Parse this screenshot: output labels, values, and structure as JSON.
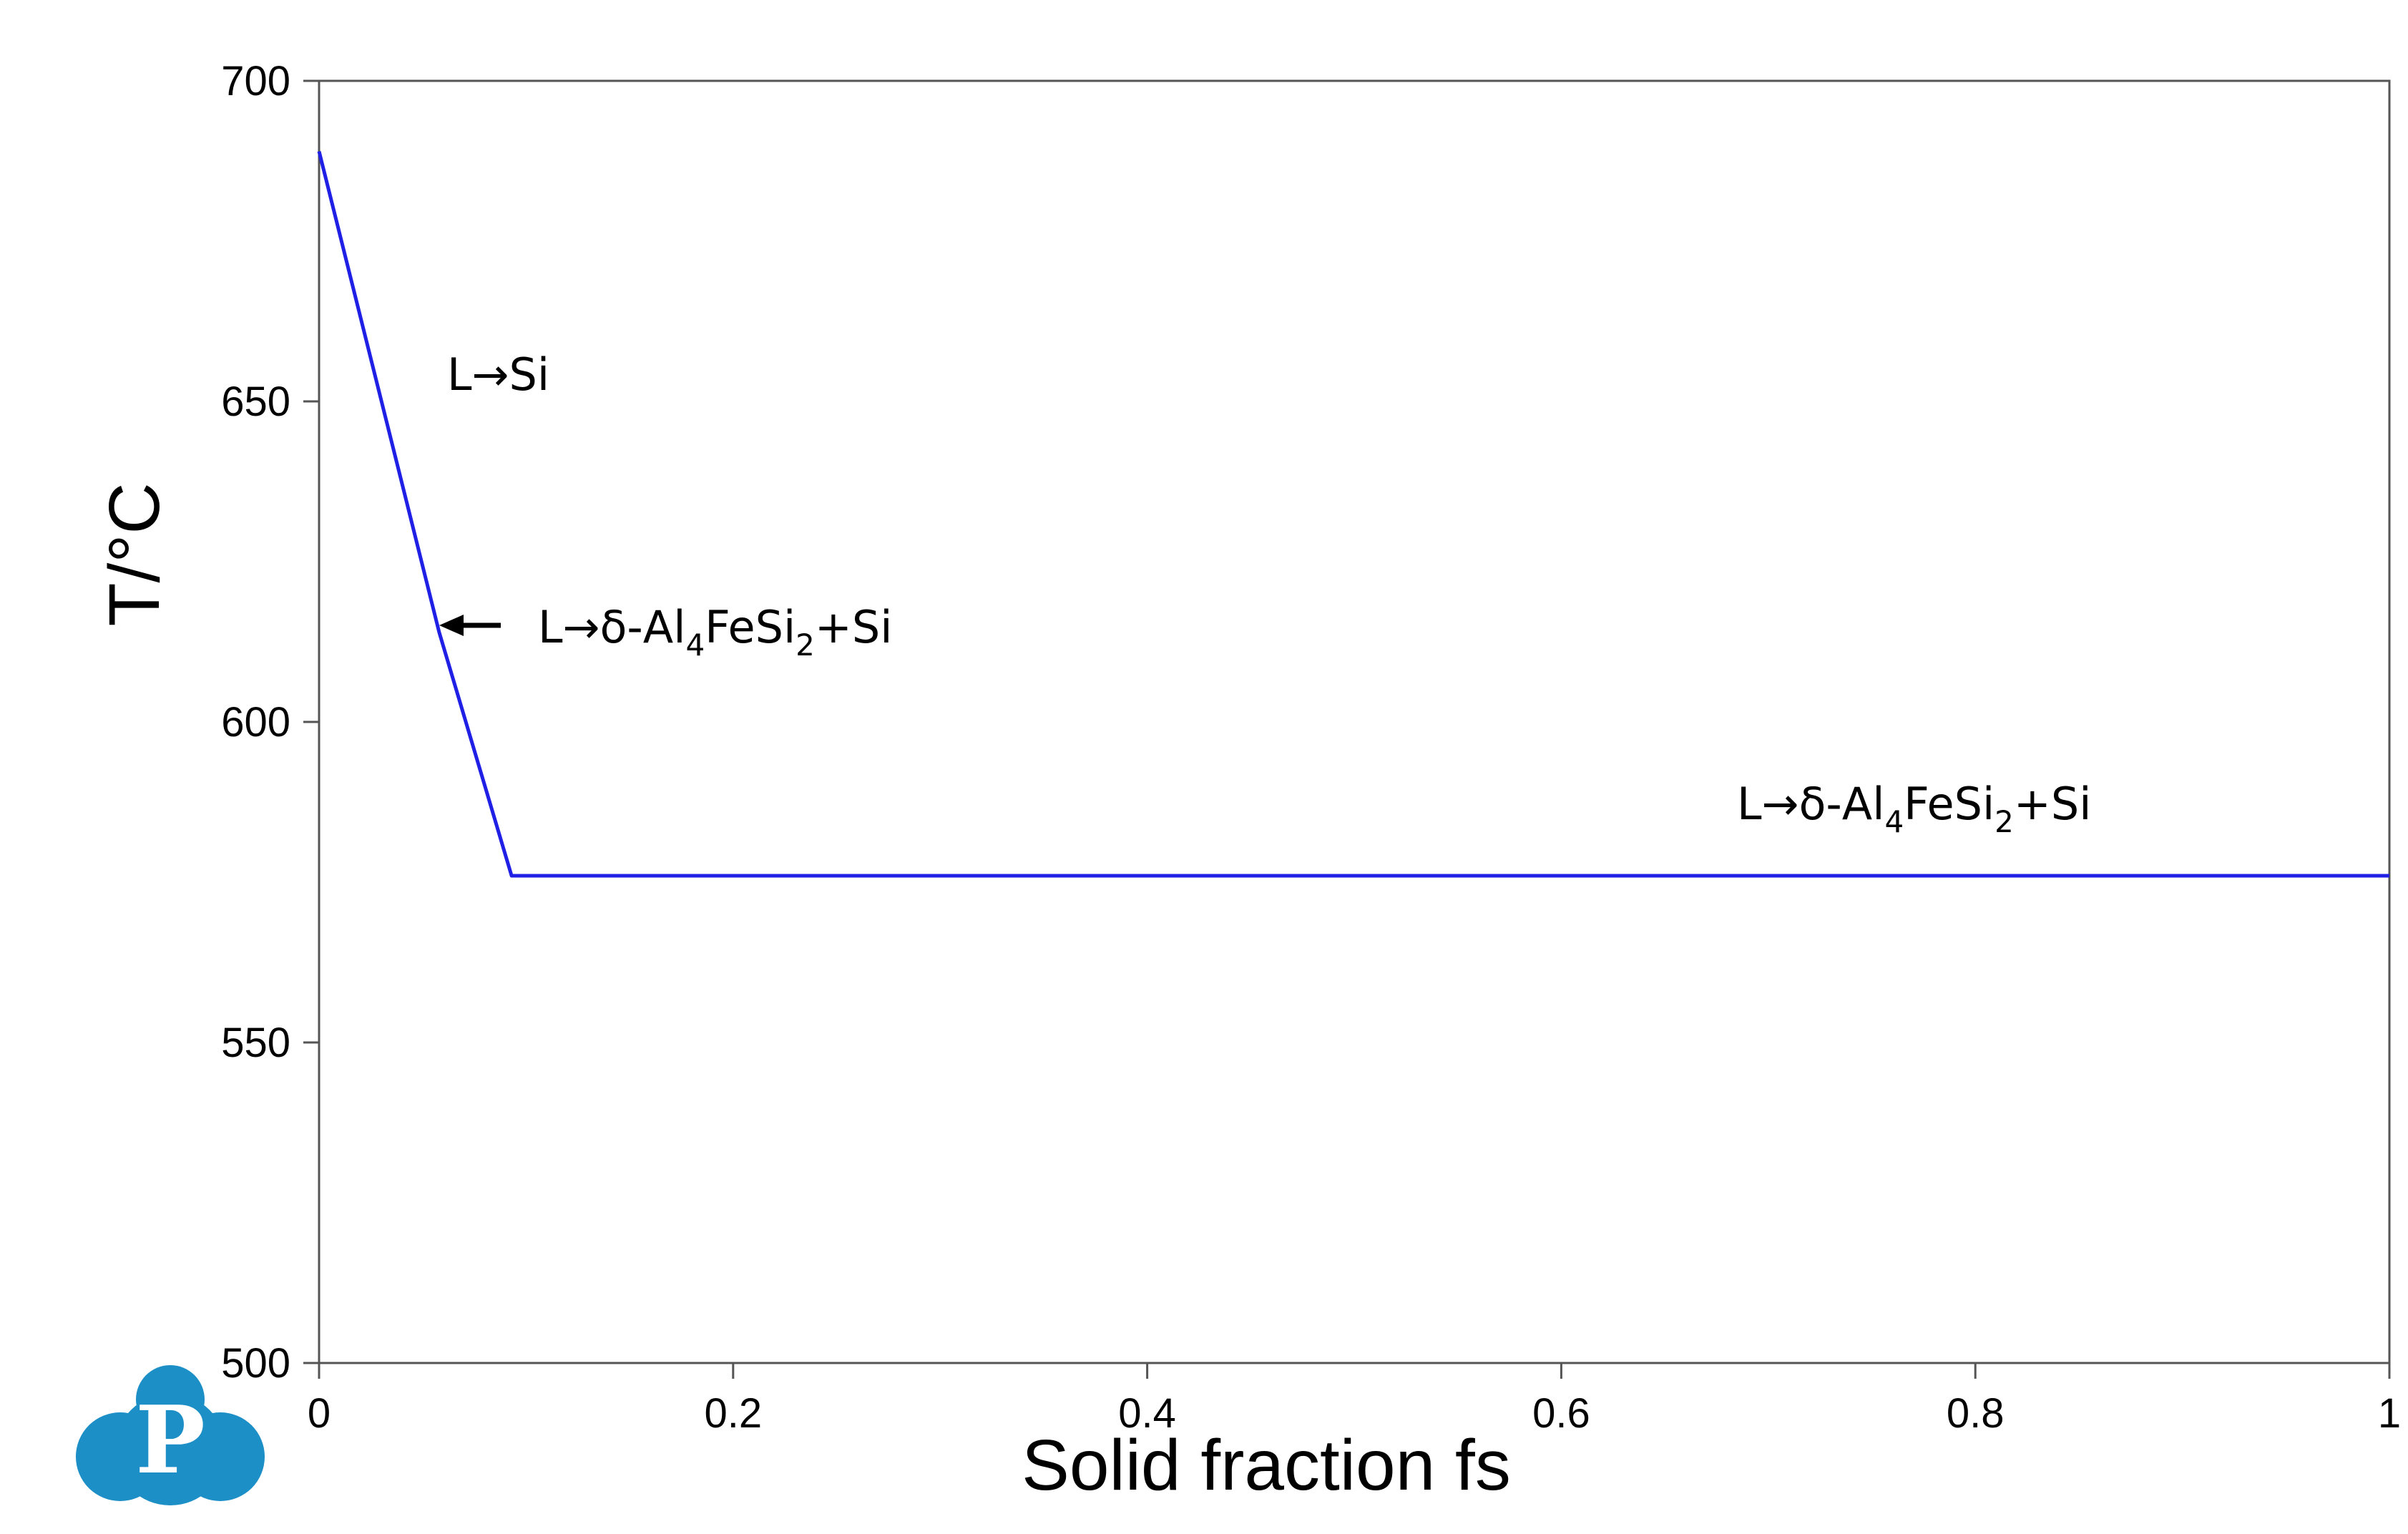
{
  "chart_data": {
    "type": "line",
    "title": "",
    "xlabel": "Solid fraction fs",
    "ylabel": "T/°C",
    "xlim": [
      0,
      1
    ],
    "ylim": [
      500,
      700
    ],
    "x_ticks": [
      "0",
      "0.2",
      "0.4",
      "0.6",
      "0.8",
      "1"
    ],
    "y_ticks": [
      "500",
      "550",
      "600",
      "650",
      "700"
    ],
    "grid": false,
    "series": [
      {
        "color": "#1f1fe6",
        "x": [
          0,
          0.058,
          0.093,
          1.0
        ],
        "y": [
          689,
          614,
          576,
          576
        ]
      }
    ],
    "annotations": [
      {
        "id": "ann1",
        "parts": [
          {
            "t": "L→Si"
          }
        ]
      },
      {
        "id": "ann2",
        "parts": [
          {
            "t": "L→δ-Al"
          },
          {
            "t": "4",
            "sub": true
          },
          {
            "t": "FeSi"
          },
          {
            "t": "2",
            "sub": true
          },
          {
            "t": "+Si"
          }
        ]
      },
      {
        "id": "ann3",
        "parts": [
          {
            "t": "L→δ-Al"
          },
          {
            "t": "4",
            "sub": true
          },
          {
            "t": "FeSi"
          },
          {
            "t": "2",
            "sub": true
          },
          {
            "t": "+Si"
          }
        ]
      }
    ]
  },
  "logo": {
    "letter": "P",
    "color": "#1d8fc7"
  }
}
